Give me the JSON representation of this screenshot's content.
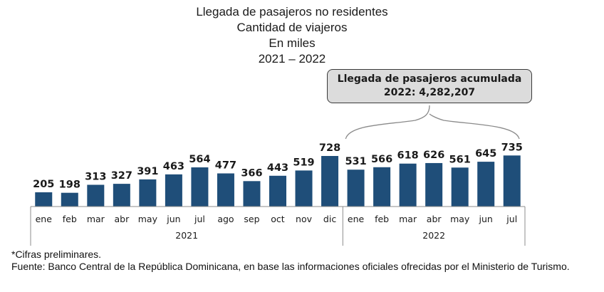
{
  "title_lines": [
    "Llegada de pasajeros no residentes",
    "Cantidad de viajeros",
    "En miles",
    "2021 – 2022"
  ],
  "callout": {
    "line1": "Llegada de pasajeros acumulada",
    "line2": "2022: 4,282,207",
    "bracket_spans_group": "2022"
  },
  "colors": {
    "bar": "#1f4e79",
    "axis": "#8c8c8c",
    "callout_bg": "#dcdcdc"
  },
  "chart_data": {
    "type": "bar",
    "title": "Llegada de pasajeros no residentes - Cantidad de viajeros - En miles - 2021 – 2022",
    "xlabel": "",
    "ylabel": "",
    "units": "miles",
    "grid": false,
    "ylim": [
      0,
      800
    ],
    "categories": [
      "ene",
      "feb",
      "mar",
      "abr",
      "may",
      "jun",
      "jul",
      "ago",
      "sep",
      "oct",
      "nov",
      "dic",
      "ene",
      "feb",
      "mar",
      "abr",
      "may",
      "jun",
      "jul"
    ],
    "groups": [
      {
        "label": "2021",
        "count": 12
      },
      {
        "label": "2022",
        "count": 7
      }
    ],
    "values": [
      205,
      198,
      313,
      327,
      391,
      463,
      564,
      477,
      366,
      443,
      519,
      728,
      531,
      566,
      618,
      626,
      561,
      645,
      735
    ],
    "data_labels": [
      "205",
      "198",
      "313",
      "327",
      "391",
      "463",
      "564",
      "477",
      "366",
      "443",
      "519",
      "728",
      "531",
      "566",
      "618",
      "626",
      "561",
      "645",
      "735"
    ]
  },
  "footer": {
    "note": "*Cifras preliminares.",
    "source": "Fuente: Banco Central de la República Dominicana, en base las informaciones oficiales ofrecidas por el Ministerio de Turismo."
  }
}
